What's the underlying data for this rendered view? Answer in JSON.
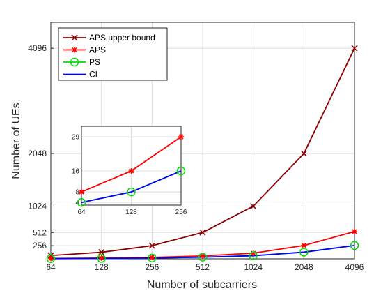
{
  "chart_data": {
    "type": "line",
    "xlabel": "Number of subcarriers",
    "ylabel": "Number of UEs",
    "x": [
      64,
      128,
      256,
      512,
      1024,
      2048,
      4096
    ],
    "x_tick_labels": [
      "64",
      "128",
      "256",
      "512",
      "1024",
      "2048",
      "4096"
    ],
    "y_ticks": [
      256,
      512,
      1024,
      2048,
      4096
    ],
    "ylim": [
      0,
      4600
    ],
    "grid": true,
    "legend_position": "top-left",
    "series": [
      {
        "name": "APS upper bound",
        "color": "#8b0000",
        "marker": "x",
        "values": [
          64,
          128,
          256,
          512,
          1024,
          2048,
          4096
        ]
      },
      {
        "name": "APS",
        "color": "#ff0000",
        "marker": "asterisk",
        "values": [
          8,
          16,
          29,
          56,
          110,
          260,
          530
        ]
      },
      {
        "name": "PS",
        "color": "#00dd00",
        "marker": "circle",
        "values": [
          4,
          8,
          16,
          32,
          60,
          130,
          260
        ]
      },
      {
        "name": "CI",
        "color": "#0000ff",
        "marker": "none",
        "values": [
          4,
          8,
          16,
          32,
          60,
          130,
          260
        ]
      }
    ],
    "inset": {
      "x": [
        64,
        128,
        256
      ],
      "x_tick_labels": [
        "64",
        "128",
        "256"
      ],
      "y_ticks": [
        4,
        8,
        16,
        29
      ],
      "ylim": [
        3,
        33
      ],
      "series": [
        {
          "ref": "APS",
          "values": [
            8,
            16,
            29
          ]
        },
        {
          "ref": "PS",
          "values": [
            4,
            8,
            16
          ]
        },
        {
          "ref": "CI",
          "values": [
            4,
            8,
            16
          ]
        }
      ]
    }
  }
}
